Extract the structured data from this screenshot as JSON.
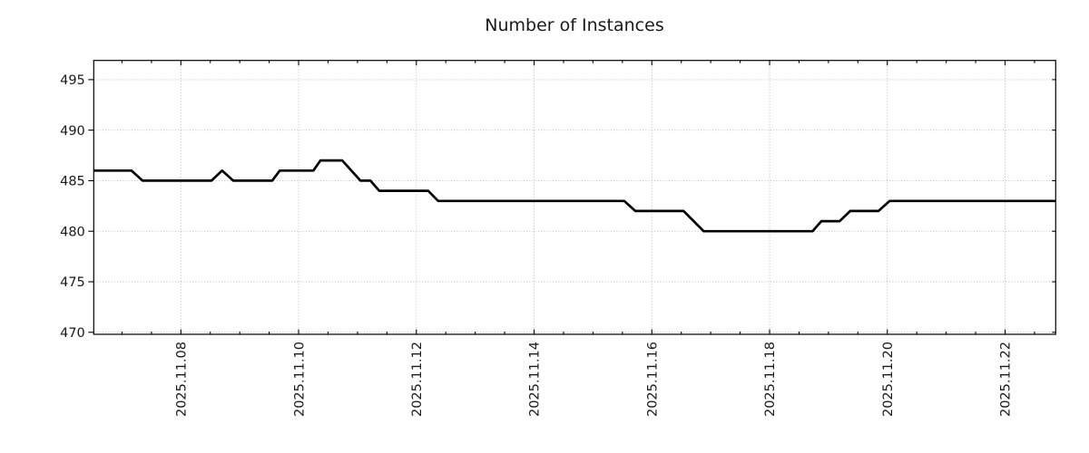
{
  "chart_data": {
    "type": "line",
    "title": "Number of Instances",
    "xlabel": "",
    "ylabel": "",
    "x_unit": "day of November 2025",
    "xlim": [
      6.52,
      22.86
    ],
    "ylim": [
      469.8,
      496.9
    ],
    "grid": true,
    "grid_style": "dotted",
    "legend": "none",
    "x_major_ticks": [
      8,
      10,
      12,
      14,
      16,
      18,
      20,
      22
    ],
    "x_major_labels": [
      "2025.11.08",
      "2025.11.10",
      "2025.11.12",
      "2025.11.14",
      "2025.11.16",
      "2025.11.18",
      "2025.11.20",
      "2025.11.22"
    ],
    "x_minor_step": 0.5,
    "y_ticks": [
      470,
      475,
      480,
      485,
      490,
      495
    ],
    "y_tick_labels": [
      "470",
      "475",
      "480",
      "485",
      "490",
      "495"
    ],
    "series": [
      {
        "name": "number-of-instances",
        "color": "#000000",
        "linewidth": 2.7,
        "points": [
          [
            6.52,
            486
          ],
          [
            7.16,
            486
          ],
          [
            7.35,
            485
          ],
          [
            8.52,
            485
          ],
          [
            8.7,
            486
          ],
          [
            8.89,
            485
          ],
          [
            9.55,
            485
          ],
          [
            9.68,
            486
          ],
          [
            10.25,
            486
          ],
          [
            10.37,
            487
          ],
          [
            10.74,
            487
          ],
          [
            11.05,
            485
          ],
          [
            11.22,
            485
          ],
          [
            11.37,
            484
          ],
          [
            12.2,
            484
          ],
          [
            12.37,
            483
          ],
          [
            15.53,
            483
          ],
          [
            15.72,
            482
          ],
          [
            16.54,
            482
          ],
          [
            16.88,
            480
          ],
          [
            18.73,
            480
          ],
          [
            18.88,
            481
          ],
          [
            19.19,
            481
          ],
          [
            19.37,
            482
          ],
          [
            19.85,
            482
          ],
          [
            20.04,
            483
          ],
          [
            22.86,
            483
          ]
        ]
      }
    ],
    "colors": {
      "line": "#000000",
      "grid": "#b2b2b2",
      "spine": "#000000",
      "text": "#1a1a1a",
      "background": "#ffffff"
    }
  }
}
